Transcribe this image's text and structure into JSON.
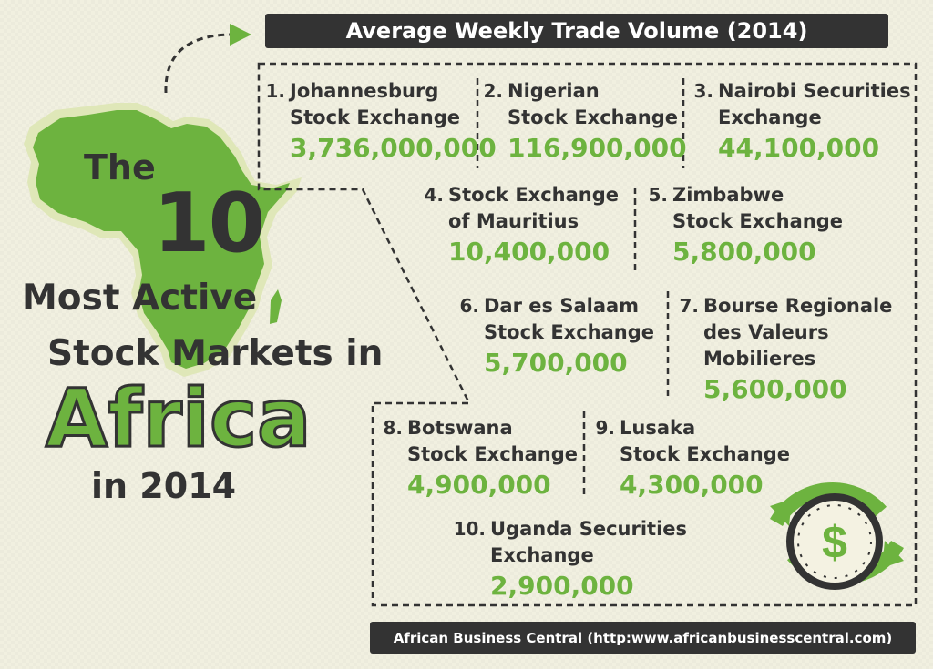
{
  "header": {
    "title": "Average Weekly Trade Volume (2014)"
  },
  "headline": {
    "the": "The",
    "number": "10",
    "line1": "Most Active",
    "line2": "Stock Markets in",
    "region": "Africa",
    "year": "in 2014"
  },
  "footer": {
    "source": "African Business Central (http:www.africanbusinesscentral.com)"
  },
  "colors": {
    "accent": "#6db33f",
    "dark": "#333333",
    "background": "#f1f0e0",
    "africa_shape": "#6db33f"
  },
  "icons": [
    "arrow-icon",
    "africa-map-icon",
    "dollar-clock-icon"
  ],
  "chart_data": {
    "type": "table",
    "title": "Average Weekly Trade Volume (2014)",
    "categories": [
      "Johannesburg Stock Exchange",
      "Nigerian Stock Exchange",
      "Nairobi Securities Exchange",
      "Stock Exchange of Mauritius",
      "Zimbabwe Stock Exchange",
      "Dar es Salaam Stock Exchange",
      "Bourse Regionale des Valeurs Mobilieres",
      "Botswana Stock Exchange",
      "Lusaka Stock Exchange",
      "Uganda Securities Exchange"
    ],
    "values": [
      3736000000,
      116900000,
      44100000,
      10400000,
      5800000,
      5700000,
      5600000,
      4900000,
      4300000,
      2900000
    ],
    "items": [
      {
        "rank": "1.",
        "name_lines": [
          "Johannesburg",
          "Stock Exchange"
        ],
        "value_text": "3,736,000,000"
      },
      {
        "rank": "2.",
        "name_lines": [
          "Nigerian",
          "Stock Exchange"
        ],
        "value_text": "116,900,000"
      },
      {
        "rank": "3.",
        "name_lines": [
          "Nairobi Securities",
          "Exchange"
        ],
        "value_text": "44,100,000"
      },
      {
        "rank": "4.",
        "name_lines": [
          "Stock Exchange",
          "of Mauritius"
        ],
        "value_text": "10,400,000"
      },
      {
        "rank": "5.",
        "name_lines": [
          "Zimbabwe",
          "Stock Exchange"
        ],
        "value_text": "5,800,000"
      },
      {
        "rank": "6.",
        "name_lines": [
          "Dar es Salaam",
          "Stock Exchange"
        ],
        "value_text": "5,700,000"
      },
      {
        "rank": "7.",
        "name_lines": [
          "Bourse Regionale",
          "des Valeurs",
          "Mobilieres"
        ],
        "value_text": "5,600,000"
      },
      {
        "rank": "8.",
        "name_lines": [
          "Botswana",
          "Stock Exchange"
        ],
        "value_text": "4,900,000"
      },
      {
        "rank": "9.",
        "name_lines": [
          "Lusaka",
          "Stock Exchange"
        ],
        "value_text": "4,300,000"
      },
      {
        "rank": "10.",
        "name_lines": [
          "Uganda Securities",
          "Exchange"
        ],
        "value_text": "2,900,000"
      }
    ]
  }
}
